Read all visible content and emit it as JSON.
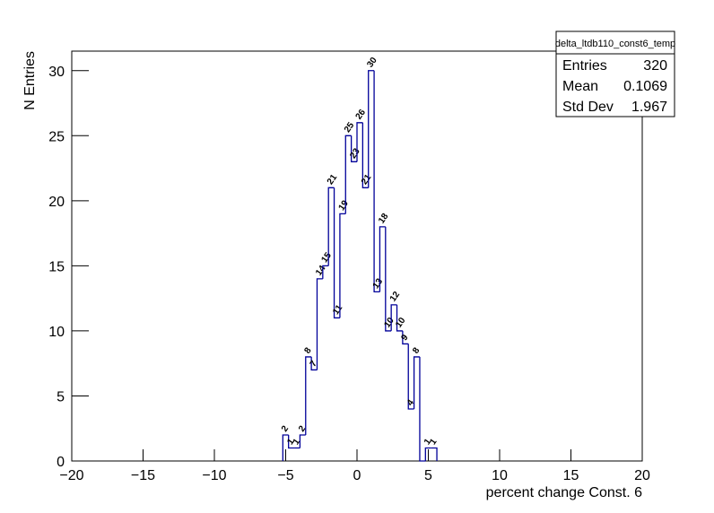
{
  "chart_data": {
    "type": "histogram",
    "xlabel": "percent change Const. 6",
    "ylabel": "N Entries",
    "color": "#000099",
    "bins": [
      -5.2,
      -4.8,
      -4.4,
      -4.0,
      -3.6,
      -3.2,
      -2.8,
      -2.4,
      -2.0,
      -1.6,
      -1.2,
      -0.8,
      -0.4,
      0,
      0.4,
      0.8,
      1.2,
      1.6,
      2.0,
      2.4,
      2.8,
      3.2,
      3.6,
      4.0,
      4.4,
      4.8,
      5.2,
      5.6
    ],
    "values": [
      2,
      1,
      1,
      2,
      8,
      7,
      14,
      15,
      21,
      11,
      19,
      25,
      23,
      26,
      21,
      30,
      13,
      18,
      10,
      12,
      10,
      9,
      4,
      8,
      0,
      1,
      1
    ],
    "xlim": [
      -20,
      20
    ],
    "ylim": [
      0,
      31.5
    ],
    "xticks": [
      {
        "value": -20,
        "label": "−20"
      },
      {
        "value": -15,
        "label": "−15"
      },
      {
        "value": -10,
        "label": "−10"
      },
      {
        "value": -5,
        "label": "−5"
      },
      0,
      5,
      10,
      15,
      20
    ],
    "yticks": [
      0,
      5,
      10,
      15,
      20,
      25,
      30
    ],
    "stats": {
      "title": "delta_ltdb110_const6_temp",
      "rows": [
        {
          "label": "Entries",
          "value": 320
        },
        {
          "label": "Mean",
          "value": 0.1069
        },
        {
          "label": "Std Dev",
          "value": 1.967
        }
      ]
    }
  }
}
